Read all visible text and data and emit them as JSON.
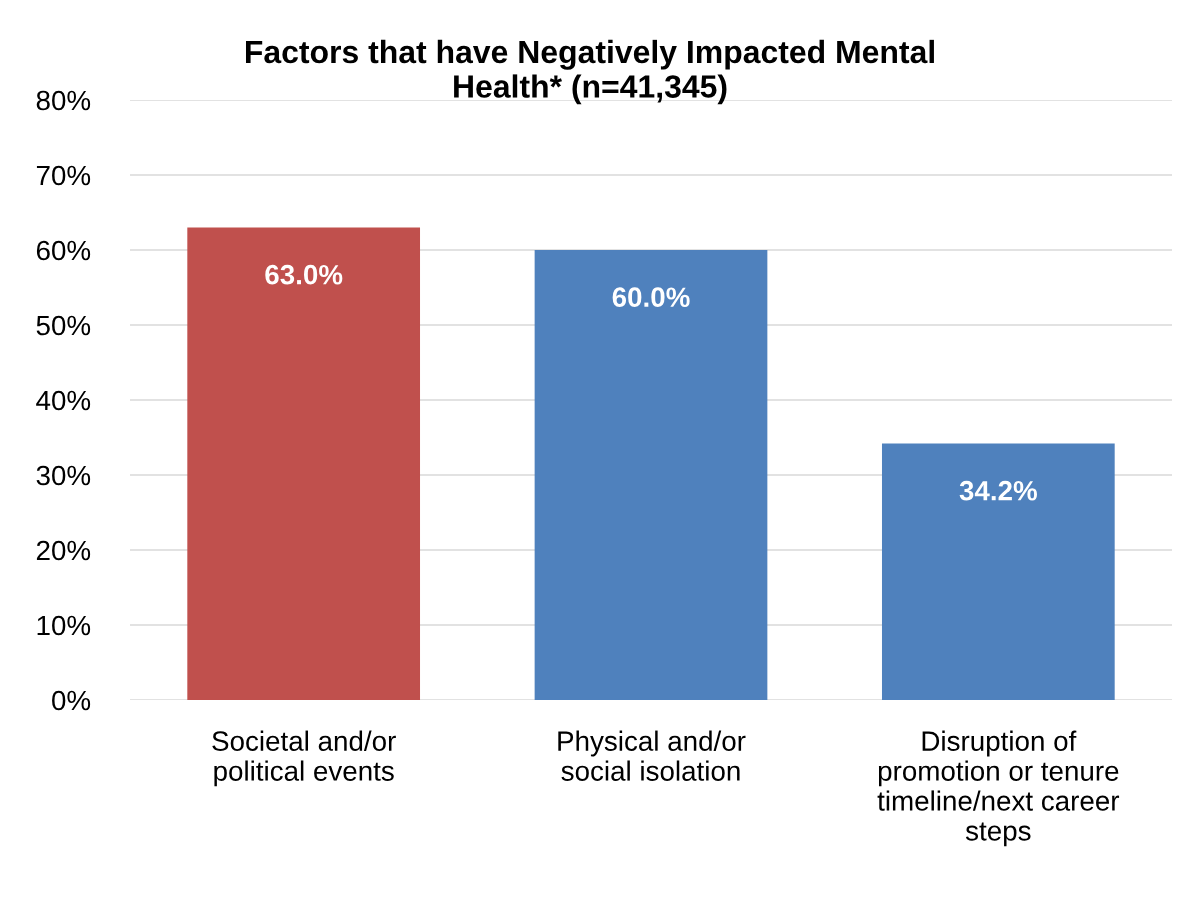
{
  "chart_data": {
    "type": "bar",
    "title": "Factors that have Negatively Impacted Mental Health* (n=41,345)",
    "categories": [
      "Societal and/or political events",
      "Physical and/or social isolation",
      "Disruption of promotion or tenure timeline/next career steps"
    ],
    "values": [
      63.0,
      60.0,
      34.2
    ],
    "colors": [
      "#c0504d",
      "#4f81bd",
      "#4f81bd"
    ],
    "value_labels": [
      "63.0%",
      "60.0%",
      "34.2%"
    ],
    "ylim": [
      0,
      80
    ],
    "yticks": [
      {
        "value": 0,
        "label": "0%"
      },
      {
        "value": 10,
        "label": "10%"
      },
      {
        "value": 20,
        "label": "20%"
      },
      {
        "value": 30,
        "label": "30%"
      },
      {
        "value": 40,
        "label": "40%"
      },
      {
        "value": 50,
        "label": "50%"
      },
      {
        "value": 60,
        "label": "60%"
      },
      {
        "value": 70,
        "label": "70%"
      },
      {
        "value": 80,
        "label": "80%"
      }
    ],
    "grid": "y",
    "legend": false
  }
}
